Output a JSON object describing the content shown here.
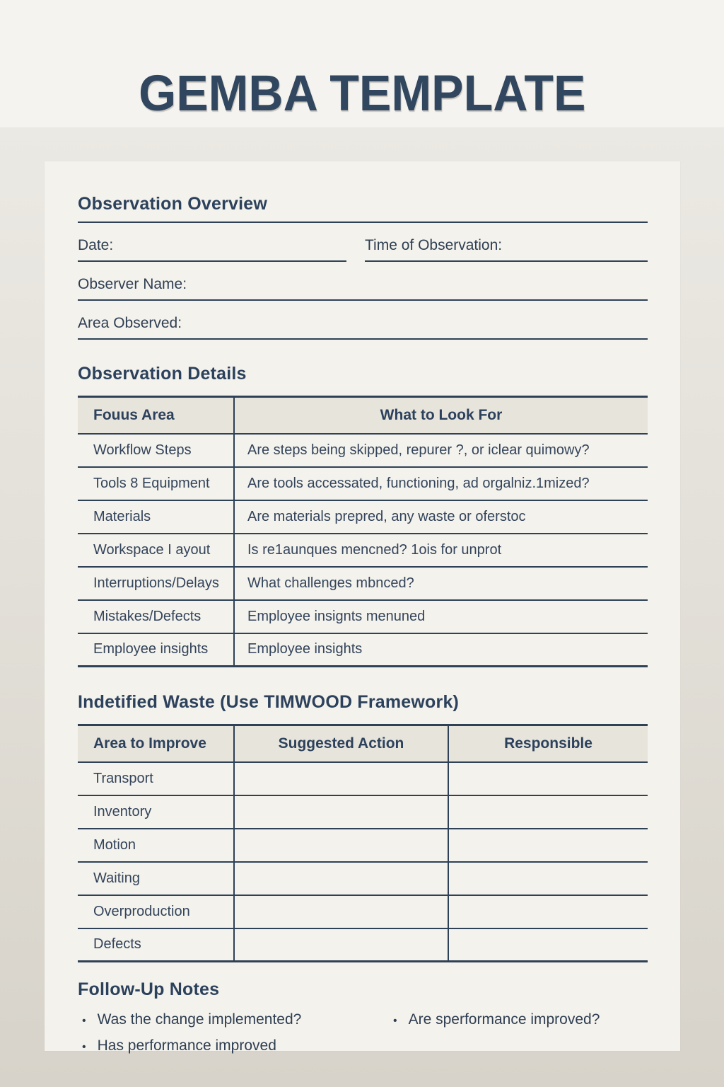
{
  "title": "GEMBA TEMPLATE",
  "overview": {
    "heading": "Observation Overview",
    "date_label": "Date:",
    "time_label": "Time of Observation:",
    "observer_label": "Observer Name:",
    "area_label": "Area Observed:",
    "date_value": "",
    "time_value": "",
    "observer_value": "",
    "area_value": ""
  },
  "details": {
    "heading": "Observation Details",
    "table": {
      "headers": [
        "Fouus Area",
        "What to Look For"
      ],
      "rows": [
        {
          "focus": "Workflow Steps",
          "look": "Are steps being skipped, repurer ?, or iclear quimowy?"
        },
        {
          "focus": "Tools 8 Equipment",
          "look": "Are tools accessated, functioning, ad orgalniz.1mized?"
        },
        {
          "focus": "Materials",
          "look": "Are materials prepred, any waste or  oferstoc"
        },
        {
          "focus": "Workspace I ayout",
          "look": "Is re1aunques mencned?  1ois for unprot"
        },
        {
          "focus": "Interruptions/Delays",
          "look": "What challenges mbnced?"
        },
        {
          "focus": "Mistakes/Defects",
          "look": "Employee insignts  menuned"
        },
        {
          "focus": "Employee insights",
          "look": "Employee insights"
        }
      ]
    }
  },
  "waste": {
    "heading": "Indetified Waste (Use TIMWOOD Framework)",
    "table": {
      "headers": [
        "Area to Improve",
        "Suggested Action",
        "Responsible"
      ],
      "rows": [
        {
          "area": "Transport",
          "action": "",
          "responsible": ""
        },
        {
          "area": "Inventory",
          "action": "",
          "responsible": ""
        },
        {
          "area": "Motion",
          "action": "",
          "responsible": ""
        },
        {
          "area": "Waiting",
          "action": "",
          "responsible": ""
        },
        {
          "area": "Overproduction",
          "action": "",
          "responsible": ""
        },
        {
          "area": "Defects",
          "action": "",
          "responsible": ""
        }
      ]
    }
  },
  "followup": {
    "heading": "Follow-Up Notes",
    "bullet_icon": "•",
    "left_bullets": [
      "Was the change implemented?",
      "Has performance improved"
    ],
    "right_bullets": [
      "Are sperformance improved?"
    ]
  },
  "colors": {
    "navy_text": "#2e3e52",
    "navy_line": "#2e4156",
    "title_navy": "#31465f",
    "header_fill": "#e7e4dc",
    "panel_bg": "#f4f2ec",
    "page_top_bg": "#f5f3ef",
    "page_bottom_bg": "#d7d3ca"
  }
}
